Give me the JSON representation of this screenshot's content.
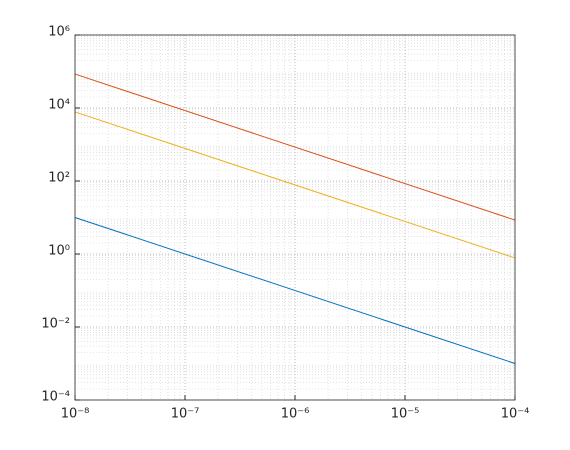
{
  "chart_data": {
    "type": "line",
    "log_x": true,
    "log_y": true,
    "grid": true,
    "minor_grid": true,
    "x": [
      1e-08,
      0.0001
    ],
    "series": [
      {
        "color": "#0072bd",
        "values": [
          10,
          0.001
        ]
      },
      {
        "color": "#d95319",
        "values": [
          85000,
          8.5
        ]
      },
      {
        "color": "#edb120",
        "values": [
          7800,
          0.78
        ]
      }
    ],
    "xlim": [
      1e-08,
      0.0001
    ],
    "xticks": [
      {
        "value": 1e-08,
        "label": "10⁻⁸"
      },
      {
        "value": 1e-07,
        "label": "10⁻⁷"
      },
      {
        "value": 1e-06,
        "label": "10⁻⁶"
      },
      {
        "value": 1e-05,
        "label": "10⁻⁵"
      },
      {
        "value": 0.0001,
        "label": "10⁻⁴"
      }
    ],
    "ylim": [
      0.0001,
      1000000.0
    ],
    "yticks": [
      {
        "value": 0.0001,
        "label": "10⁻⁴"
      },
      {
        "value": 0.01,
        "label": "10⁻²"
      },
      {
        "value": 1,
        "label": "10⁰"
      },
      {
        "value": 100,
        "label": "10²"
      },
      {
        "value": 10000,
        "label": "10⁴"
      },
      {
        "value": 1000000,
        "label": "10⁶"
      }
    ]
  }
}
